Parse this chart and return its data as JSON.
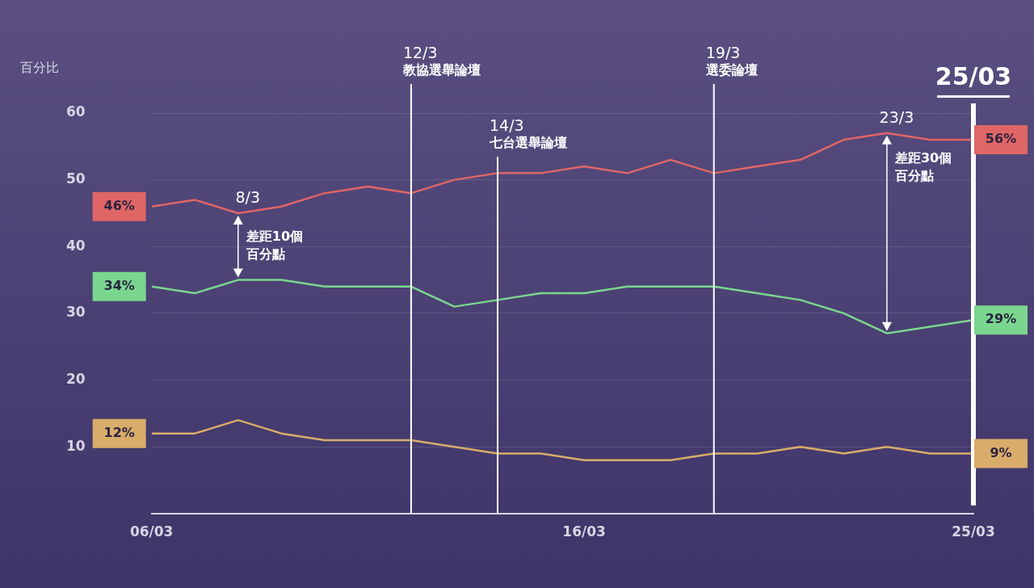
{
  "chart_data": {
    "type": "line",
    "ylabel": "百分比",
    "x": [
      "--03-06",
      "--03-07",
      "--03-08",
      "--03-09",
      "--03-10",
      "--03-11",
      "--03-12",
      "--03-13",
      "--03-14",
      "--03-15",
      "--03-16",
      "--03-17",
      "--03-18",
      "--03-19",
      "--03-20",
      "--03-21",
      "--03-22",
      "--03-23",
      "--03-24",
      "--03-25"
    ],
    "xlim": [
      "--03-06",
      "--03-25"
    ],
    "xticks": [
      {
        "value": "--03-06",
        "label": "06/03"
      },
      {
        "value": "--03-16",
        "label": "16/03"
      },
      {
        "value": "--03-25",
        "label": "25/03"
      }
    ],
    "ylim": [
      0,
      60
    ],
    "yticks": [
      {
        "value": 0,
        "label": null
      },
      10,
      20,
      30,
      40,
      50,
      60
    ],
    "grid": "y",
    "legend": false,
    "marker": "none",
    "line_style": "solid",
    "series": [
      {
        "color": "#e06666",
        "values": [
          46,
          47,
          45,
          46,
          48,
          49,
          48,
          50,
          51,
          51,
          52,
          51,
          53,
          51,
          52,
          53,
          56,
          57,
          56,
          56
        ],
        "value_labels": [
          "46%",
          null,
          null,
          null,
          null,
          null,
          null,
          null,
          null,
          null,
          null,
          null,
          null,
          null,
          null,
          null,
          null,
          null,
          null,
          "56%"
        ]
      },
      {
        "color": "#7ad68f",
        "values": [
          34,
          33,
          35,
          35,
          34,
          34,
          34,
          31,
          32,
          33,
          33,
          34,
          34,
          34,
          33,
          32,
          30,
          27,
          28,
          29
        ],
        "value_labels": [
          "34%",
          null,
          null,
          null,
          null,
          null,
          null,
          null,
          null,
          null,
          null,
          null,
          null,
          null,
          null,
          null,
          null,
          null,
          null,
          "29%"
        ]
      },
      {
        "color": "#d9ac6a",
        "values": [
          12,
          12,
          14,
          12,
          11,
          11,
          11,
          10,
          9,
          9,
          8,
          8,
          8,
          9,
          9,
          10,
          9,
          10,
          9,
          9
        ],
        "value_labels": [
          "12%",
          null,
          null,
          null,
          null,
          null,
          null,
          null,
          null,
          null,
          null,
          null,
          null,
          null,
          null,
          null,
          null,
          null,
          null,
          "9%"
        ]
      }
    ],
    "ref_lines": [
      {
        "axis": "x",
        "value": "--03-12",
        "label": "12/3\n教協選舉論壇",
        "color": "#ffffff"
      },
      {
        "axis": "x",
        "value": "--03-14",
        "label": "14/3\n七台選舉論壇",
        "color": "#ffffff"
      },
      {
        "axis": "x",
        "value": "--03-19",
        "label": "19/3\n選委論壇",
        "color": "#ffffff"
      },
      {
        "axis": "x",
        "value": "--03-25",
        "label": "25/03",
        "color": "#ffffff"
      }
    ],
    "annotations": [
      {
        "text": "8/3",
        "x": "--03-08",
        "y": 45
      },
      {
        "text": "差距10個百分點",
        "x": "--03-08",
        "y": 45
      },
      {
        "text": "23/3",
        "x": "--03-23",
        "y": 57
      },
      {
        "text": "差距30個百分點",
        "x": "--03-23",
        "y": 57
      }
    ]
  }
}
